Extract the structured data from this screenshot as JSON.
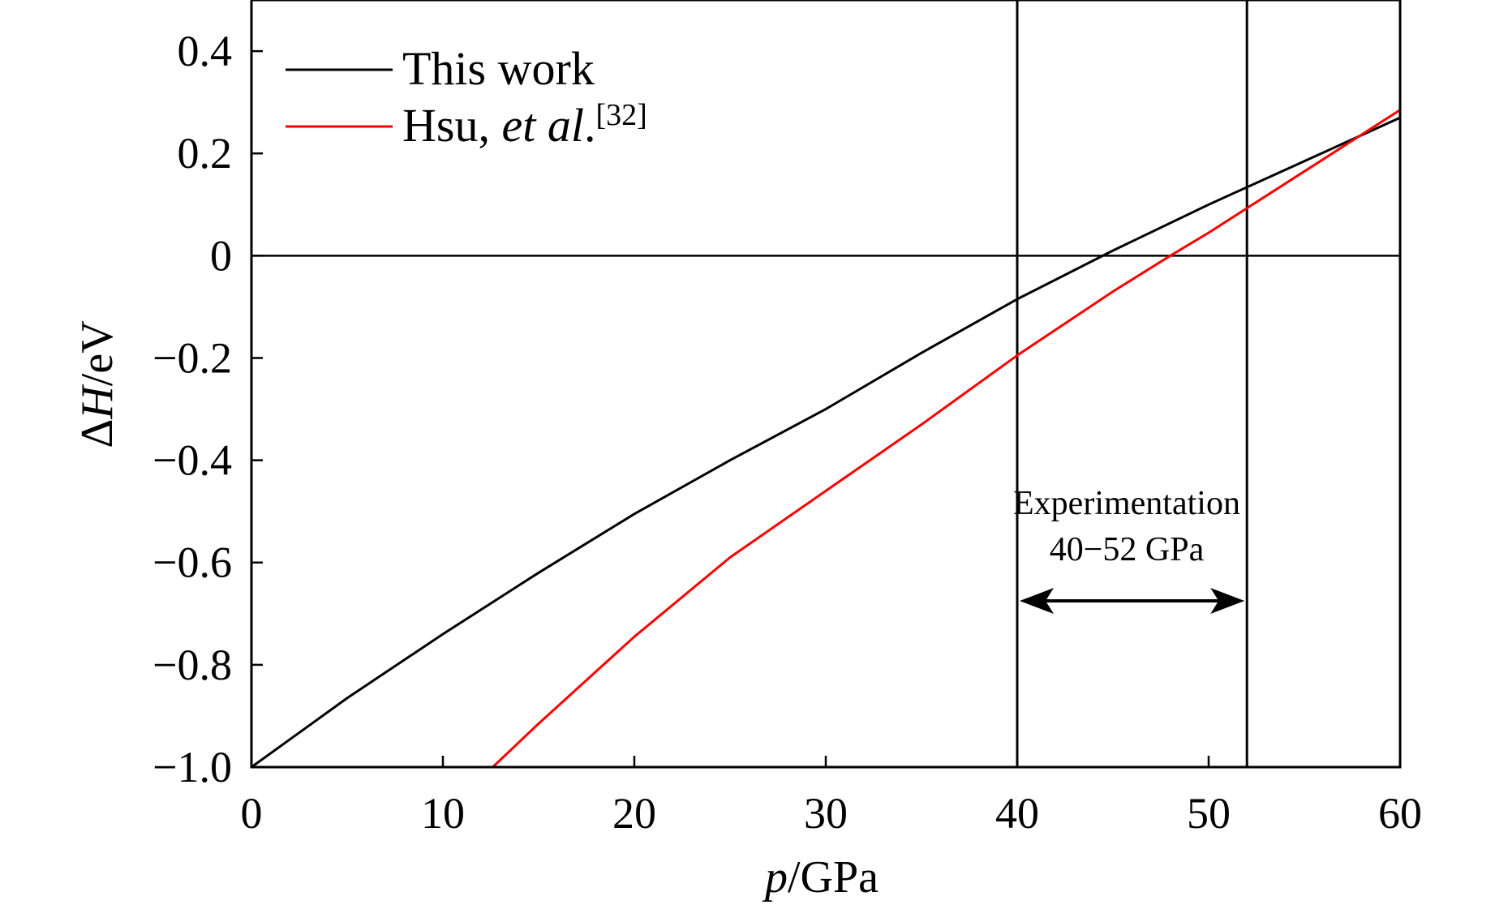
{
  "chart_data": {
    "type": "line",
    "xlabel": {
      "italic": "p",
      "rest": "/GPa"
    },
    "ylabel": {
      "prefix": "Δ",
      "italic": "H",
      "rest": "/eV"
    },
    "xlim": [
      0,
      60
    ],
    "ylim": [
      -1.0,
      0.5
    ],
    "xticks": [
      0,
      10,
      20,
      30,
      40,
      50,
      60
    ],
    "xtick_labels": [
      "0",
      "10",
      "20",
      "30",
      "40",
      "50",
      "60"
    ],
    "yticks": [
      0.4,
      0.2,
      0,
      -0.2,
      -0.4,
      -0.6,
      -0.8,
      -1.0
    ],
    "ytick_labels": [
      "0.4",
      "0.2",
      "0",
      "−0.2",
      "−0.4",
      "−0.6",
      "−0.8",
      "−1.0"
    ],
    "grid": false,
    "legend_position": "top-left",
    "series": [
      {
        "name": "This work",
        "color": "#000000",
        "x": [
          0,
          5,
          10,
          15,
          20,
          25,
          30,
          35,
          40,
          45,
          50,
          55,
          60
        ],
        "y": [
          -1.0,
          -0.865,
          -0.74,
          -0.62,
          -0.505,
          -0.4,
          -0.3,
          -0.19,
          -0.085,
          0.01,
          0.1,
          0.185,
          0.27
        ]
      },
      {
        "name_parts": {
          "plain": "Hsu, ",
          "italic": "et al",
          "after": ".",
          "sup": "[32]"
        },
        "color": "#ff0000",
        "x": [
          12.6,
          15,
          20,
          25,
          30,
          35,
          40,
          45,
          48,
          50,
          55,
          60
        ],
        "y": [
          -1.0,
          -0.915,
          -0.745,
          -0.59,
          -0.46,
          -0.33,
          -0.195,
          -0.07,
          0.0,
          0.045,
          0.165,
          0.285
        ]
      }
    ],
    "reference_lines": {
      "horizontal_y": 0,
      "vertical_x": [
        40,
        52
      ]
    },
    "annotation": {
      "line1": "Experimentation",
      "line2": "40−52 GPa",
      "arrow_from_x": 40,
      "arrow_to_x": 52,
      "arrow_y": -0.675
    }
  }
}
